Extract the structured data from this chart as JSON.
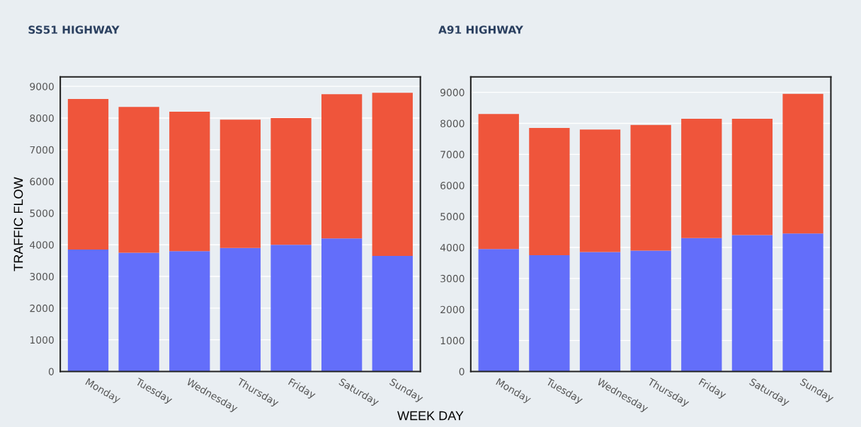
{
  "chart_data": [
    {
      "type": "bar",
      "title": "SS51 HIGHWAY",
      "ylabel": "TRAFFIC FLOW",
      "xlabel": "WEEK DAY",
      "stacked": true,
      "grid": "y",
      "categories": [
        "Monday",
        "Tuesday",
        "Wednesday",
        "Thursday",
        "Friday",
        "Saturday",
        "Sunday"
      ],
      "series": [
        {
          "color": "#636efa",
          "values": [
            3850,
            3750,
            3800,
            3900,
            4000,
            4200,
            3650
          ]
        },
        {
          "color": "#ef553b",
          "values": [
            4750,
            4600,
            4400,
            4050,
            4000,
            4550,
            5150
          ]
        }
      ],
      "ylim": [
        0,
        9300
      ],
      "yticks": [
        0,
        1000,
        2000,
        3000,
        4000,
        5000,
        6000,
        7000,
        8000,
        9000
      ]
    },
    {
      "type": "bar",
      "title": "A91 HIGHWAY",
      "stacked": true,
      "grid": "y",
      "categories": [
        "Monday",
        "Tuesday",
        "Wednesday",
        "Thursday",
        "Friday",
        "Saturday",
        "Sunday"
      ],
      "series": [
        {
          "color": "#636efa",
          "values": [
            3950,
            3750,
            3850,
            3900,
            4300,
            4400,
            4450
          ]
        },
        {
          "color": "#ef553b",
          "values": [
            4350,
            4100,
            3950,
            4050,
            3850,
            3750,
            4500
          ]
        }
      ],
      "ylim": [
        0,
        9500
      ],
      "yticks": [
        0,
        1000,
        2000,
        3000,
        4000,
        5000,
        6000,
        7000,
        8000,
        9000
      ]
    }
  ]
}
